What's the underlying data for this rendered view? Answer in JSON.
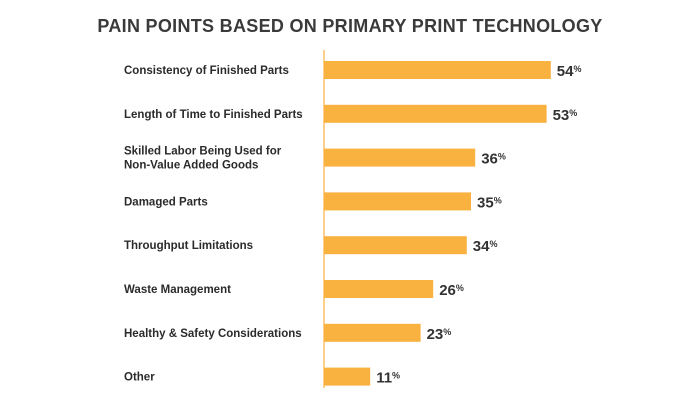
{
  "chart_data": {
    "type": "bar",
    "orientation": "horizontal",
    "title": "PAIN POINTS BASED ON PRIMARY PRINT TECHNOLOGY",
    "categories": [
      "Consistency of Finished Parts",
      "Length of Time to Finished Parts",
      "Skilled Labor Being Used for\nNon-Value Added Goods",
      "Damaged Parts",
      "Throughput Limitations",
      "Waste Management",
      "Healthy & Safety Considerations",
      "Other"
    ],
    "values": [
      54,
      53,
      36,
      35,
      34,
      26,
      23,
      11
    ],
    "value_suffix": "%",
    "bar_color": "#F9B13F",
    "axis_color": "#F9B13F",
    "grid": false,
    "legend": "none"
  }
}
